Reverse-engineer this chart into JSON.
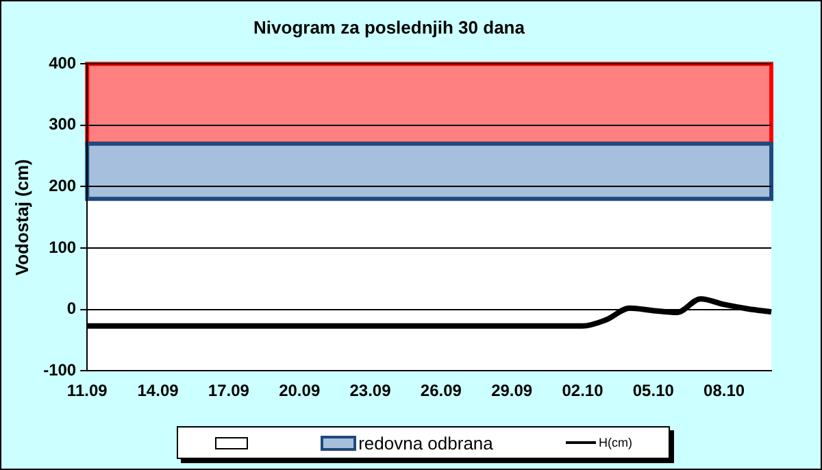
{
  "chart_data": {
    "type": "line",
    "title": "Nivogram za poslednjih 30 dana",
    "ylabel": "Vodostaj (cm)",
    "categories": [
      "11.09",
      null,
      null,
      "14.09",
      null,
      null,
      "17.09",
      null,
      null,
      "20.09",
      null,
      null,
      "23.09",
      null,
      null,
      "26.09",
      null,
      null,
      "29.09",
      null,
      null,
      "02.10",
      null,
      null,
      "05.10",
      null,
      null,
      "08.10",
      null,
      null
    ],
    "series": [
      {
        "name": "H(cm)",
        "color": "#000000",
        "values": [
          -27,
          -27,
          -27,
          -27,
          -27,
          -27,
          -27,
          -27,
          -27,
          -27,
          -27,
          -27,
          -27,
          -27,
          -27,
          -27,
          -27,
          -27,
          -27,
          -27,
          -27,
          -27,
          -17,
          2,
          -2,
          -5,
          17,
          8,
          1,
          -4
        ]
      }
    ],
    "bands": [
      {
        "axis": "y",
        "from": 270,
        "to": 400,
        "label": null,
        "color": "#ff8080"
      },
      {
        "axis": "y",
        "from": 180,
        "to": 270,
        "label": "redovna odbrana",
        "color": "#a6bfdd"
      }
    ],
    "ylim": [
      -100,
      400
    ],
    "yticks": [
      -100,
      0,
      100,
      200,
      300,
      400
    ],
    "grid": "y",
    "legend": "bottom",
    "marker": "none",
    "line_style": "solid"
  }
}
